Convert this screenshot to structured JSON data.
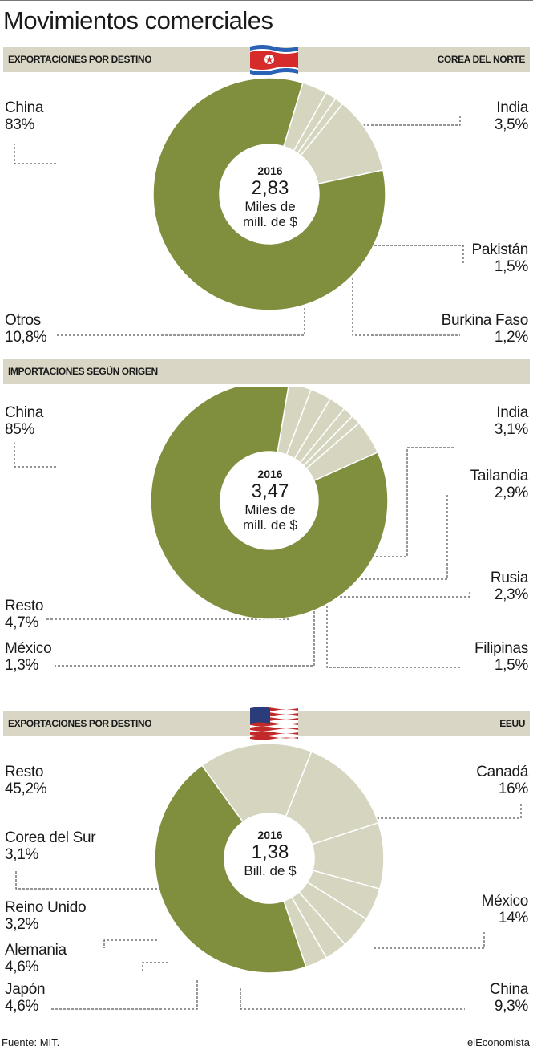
{
  "title": "Movimientos comerciales",
  "colors": {
    "major": "#7f8f3e",
    "minor": "#d6d5bf",
    "band": "#d9d6c6",
    "stroke": "#ffffff"
  },
  "panels": [
    {
      "band_left": "EXPORTACIONES POR DESTINO",
      "band_right": "COREA DEL NORTE",
      "flag": "north-korea-flag",
      "center": {
        "year": "2016",
        "value": "2,83",
        "unit_line1": "Miles de",
        "unit_line2": "mill. de $"
      }
    },
    {
      "band_left": "IMPORTACIONES SEGÚN ORIGEN",
      "center": {
        "year": "2016",
        "value": "3,47",
        "unit_line1": "Miles de",
        "unit_line2": "mill. de $"
      }
    },
    {
      "band_left": "EXPORTACIONES POR DESTINO",
      "band_right": "EEUU",
      "flag": "usa-flag",
      "center": {
        "year": "2016",
        "value": "1,38",
        "unit_line1": "Bill. de $",
        "unit_line2": ""
      }
    }
  ],
  "chart_data": [
    {
      "type": "pie",
      "slices": [
        {
          "label": "China",
          "value": 83,
          "display": "83%"
        },
        {
          "label": "India",
          "value": 3.5,
          "display": "3,5%"
        },
        {
          "label": "Pakistán",
          "value": 1.5,
          "display": "1,5%"
        },
        {
          "label": "Burkina Faso",
          "value": 1.2,
          "display": "1,2%"
        },
        {
          "label": "Otros",
          "value": 10.8,
          "display": "10,8%"
        }
      ]
    },
    {
      "type": "pie",
      "slices": [
        {
          "label": "China",
          "value": 85,
          "display": "85%"
        },
        {
          "label": "India",
          "value": 3.1,
          "display": "3,1%"
        },
        {
          "label": "Tailandia",
          "value": 2.9,
          "display": "2,9%"
        },
        {
          "label": "Rusia",
          "value": 2.3,
          "display": "2,3%"
        },
        {
          "label": "Filipinas",
          "value": 1.5,
          "display": "1,5%"
        },
        {
          "label": "México",
          "value": 1.3,
          "display": "1,3%"
        },
        {
          "label": "Resto",
          "value": 4.7,
          "display": "4,7%"
        }
      ]
    },
    {
      "type": "pie",
      "slices": [
        {
          "label": "Canadá",
          "value": 16,
          "display": "16%"
        },
        {
          "label": "México",
          "value": 14,
          "display": "14%"
        },
        {
          "label": "China",
          "value": 9.3,
          "display": "9,3%"
        },
        {
          "label": "Japón",
          "value": 4.6,
          "display": "4,6%"
        },
        {
          "label": "Alemania",
          "value": 4.6,
          "display": "4,6%"
        },
        {
          "label": "Reino Unido",
          "value": 3.2,
          "display": "3,2%"
        },
        {
          "label": "Corea del Sur",
          "value": 3.1,
          "display": "3,1%"
        },
        {
          "label": "Resto",
          "value": 45.2,
          "display": "45,2%"
        }
      ]
    }
  ],
  "footer": {
    "source": "Fuente: MIT.",
    "brand": "elEconomista"
  }
}
